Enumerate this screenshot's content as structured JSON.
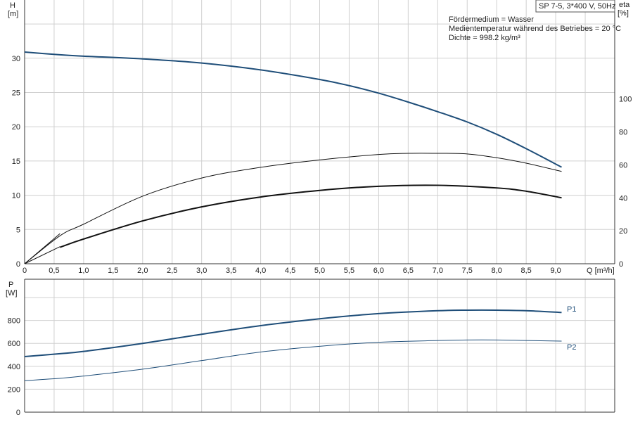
{
  "chart_data": [
    {
      "type": "line",
      "title": "",
      "model_box": "SP 7-5, 3*400 V, 50Hz",
      "info_lines": [
        "Fördermedium = Wasser",
        "Medientemperatur während des Betriebes = 20 °C",
        "Dichte = 998.2 kg/m³"
      ],
      "xlabel": "Q [m³/h]",
      "ylabel_left": "H",
      "ylabel_left_unit": "[m]",
      "ylabel_right": "eta",
      "ylabel_right_unit": "[%]",
      "xlim": [
        0,
        10
      ],
      "ylim_left": [
        0,
        38.5
      ],
      "ylim_right": [
        0,
        160
      ],
      "x_ticks": [
        "0",
        "0,5",
        "1,0",
        "1,5",
        "2,0",
        "2,5",
        "3,0",
        "3,5",
        "4,0",
        "4,5",
        "5,0",
        "5,5",
        "6,0",
        "6,5",
        "7,0",
        "7,5",
        "8,0",
        "8,5",
        "9,0"
      ],
      "y_ticks_left": [
        "0",
        "5",
        "10",
        "15",
        "20",
        "25",
        "30"
      ],
      "y_ticks_right": [
        "0",
        "20",
        "40",
        "60",
        "80",
        "100"
      ],
      "grid": true,
      "series": [
        {
          "axis": "left",
          "color": "#1f4e79",
          "width": 2,
          "x": [
            0,
            0.6,
            1.0,
            2.0,
            3.0,
            4.0,
            5.0,
            5.5,
            6.0,
            6.5,
            7.0,
            7.5,
            8.0,
            8.5,
            9.1
          ],
          "y": [
            30.9,
            30.5,
            30.3,
            29.9,
            29.3,
            28.3,
            26.9,
            26.0,
            24.9,
            23.6,
            22.2,
            20.7,
            18.9,
            16.8,
            14.1
          ]
        },
        {
          "axis": "right",
          "color": "#111111",
          "width": 1,
          "x": [
            0,
            0.6,
            1.0,
            2.0,
            3.0,
            4.0,
            5.0,
            6.0,
            6.5,
            7.0,
            7.5,
            8.0,
            8.5,
            9.1
          ],
          "y": [
            0,
            17,
            24,
            41,
            52,
            58.5,
            63,
            66.3,
            67,
            67,
            66.6,
            64.3,
            61,
            56
          ]
        },
        {
          "axis": "right",
          "color": "#111111",
          "width": 2,
          "x": [
            0.6,
            1.0,
            2.0,
            3.0,
            4.0,
            5.0,
            6.0,
            7.0,
            8.0,
            8.5,
            9.1
          ],
          "y": [
            10,
            15,
            26,
            34.5,
            40.5,
            44.5,
            47,
            47.6,
            46,
            44,
            40
          ]
        },
        {
          "axis": "left",
          "color": "#111111",
          "width": 1,
          "x": [
            0,
            0.6
          ],
          "y": [
            0,
            4.4
          ]
        },
        {
          "axis": "left",
          "color": "#111111",
          "width": 1,
          "x": [
            0,
            0.6
          ],
          "y": [
            0,
            2.5
          ]
        }
      ]
    },
    {
      "type": "line",
      "title": "",
      "ylabel": "P",
      "ylabel_unit": "[W]",
      "xlim": [
        0,
        10
      ],
      "ylim": [
        0,
        1160
      ],
      "y_ticks": [
        "0",
        "200",
        "400",
        "600",
        "800"
      ],
      "grid": true,
      "series": [
        {
          "name": "P1",
          "color": "#1f4e79",
          "width": 2,
          "x": [
            0,
            0.6,
            1.0,
            2.0,
            3.0,
            4.0,
            5.0,
            6.0,
            7.0,
            7.5,
            8.0,
            8.5,
            9.1
          ],
          "y": [
            485,
            510,
            530,
            600,
            680,
            755,
            815,
            860,
            885,
            890,
            890,
            885,
            870
          ]
        },
        {
          "name": "P2",
          "color": "#1f4e79",
          "width": 1,
          "x": [
            0,
            0.6,
            1.0,
            2.0,
            3.0,
            4.0,
            5.0,
            6.0,
            7.0,
            7.5,
            8.0,
            8.5,
            9.1
          ],
          "y": [
            275,
            295,
            315,
            375,
            450,
            525,
            575,
            610,
            625,
            630,
            630,
            625,
            620
          ]
        }
      ]
    }
  ]
}
